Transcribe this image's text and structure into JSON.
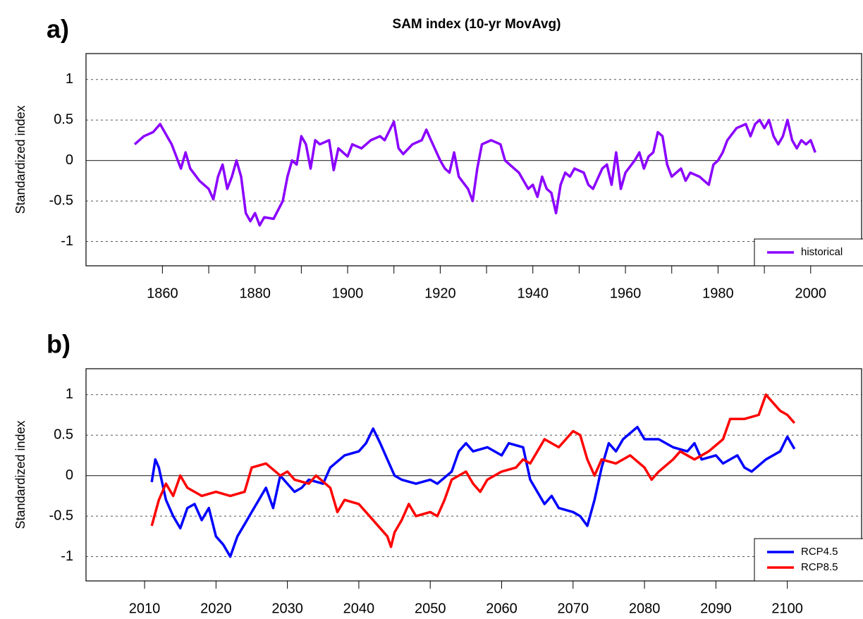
{
  "chart_data": [
    {
      "type": "line",
      "title": "SAM index (10-yr MovAvg)",
      "panel_label": "a)",
      "ylabel": "Standardized index",
      "xlim": [
        1843.5,
        2011
      ],
      "ylim": [
        -1.3,
        1.32
      ],
      "xticks": [
        1860,
        1880,
        1900,
        1920,
        1940,
        1960,
        1980,
        2000
      ],
      "x_minor_ticks": [
        1870,
        1890,
        1910,
        1930,
        1950,
        1970,
        1990
      ],
      "yticks": [
        -1,
        -0.5,
        0,
        0.5,
        1
      ],
      "grid": true,
      "zero_line": true,
      "legend": "bottom right",
      "series": [
        {
          "name": "historical",
          "color": "#8b00ff",
          "x": [
            1854,
            1856,
            1858,
            1859.5,
            1861,
            1862,
            1864,
            1865,
            1866,
            1868,
            1870,
            1871,
            1872,
            1873,
            1874,
            1875,
            1876,
            1877,
            1878,
            1879,
            1880,
            1881,
            1882,
            1884,
            1886,
            1887,
            1888,
            1889,
            1890,
            1891,
            1892,
            1893,
            1894,
            1896,
            1897,
            1898,
            1900,
            1901,
            1903,
            1905,
            1907,
            1908,
            1910,
            1911,
            1912,
            1914,
            1916,
            1917,
            1918,
            1920,
            1921,
            1922,
            1923,
            1924,
            1926,
            1927,
            1928,
            1929,
            1931,
            1933,
            1934,
            1935,
            1937,
            1939,
            1940,
            1941,
            1942,
            1943,
            1944,
            1945,
            1946,
            1947,
            1948,
            1949,
            1951,
            1952,
            1953,
            1955,
            1956,
            1957,
            1958,
            1959,
            1960,
            1962,
            1963,
            1964,
            1965,
            1966,
            1967,
            1968,
            1969,
            1970,
            1972,
            1973,
            1974,
            1976,
            1977,
            1978,
            1979,
            1980,
            1981,
            1982,
            1984,
            1986,
            1987,
            1988,
            1989,
            1990,
            1991,
            1992,
            1993,
            1994,
            1995,
            1996,
            1997,
            1998,
            1999,
            2000,
            2001
          ],
          "values": [
            0.2,
            0.3,
            0.35,
            0.45,
            0.3,
            0.2,
            -0.1,
            0.1,
            -0.1,
            -0.25,
            -0.35,
            -0.48,
            -0.2,
            -0.05,
            -0.35,
            -0.2,
            0.0,
            -0.2,
            -0.65,
            -0.75,
            -0.65,
            -0.8,
            -0.7,
            -0.72,
            -0.5,
            -0.2,
            0.0,
            -0.05,
            0.3,
            0.2,
            -0.1,
            0.25,
            0.2,
            0.25,
            -0.12,
            0.15,
            0.05,
            0.2,
            0.15,
            0.25,
            0.3,
            0.25,
            0.48,
            0.15,
            0.08,
            0.2,
            0.25,
            0.38,
            0.25,
            0.0,
            -0.1,
            -0.15,
            0.1,
            -0.2,
            -0.35,
            -0.5,
            -0.1,
            0.2,
            0.25,
            0.2,
            0.0,
            -0.05,
            -0.15,
            -0.35,
            -0.3,
            -0.45,
            -0.2,
            -0.35,
            -0.4,
            -0.65,
            -0.3,
            -0.15,
            -0.2,
            -0.1,
            -0.15,
            -0.3,
            -0.35,
            -0.1,
            -0.05,
            -0.3,
            0.1,
            -0.35,
            -0.15,
            0.0,
            0.1,
            -0.1,
            0.05,
            0.1,
            0.35,
            0.3,
            -0.05,
            -0.2,
            -0.1,
            -0.25,
            -0.15,
            -0.2,
            -0.25,
            -0.3,
            -0.05,
            0.0,
            0.1,
            0.25,
            0.4,
            0.45,
            0.3,
            0.45,
            0.5,
            0.4,
            0.5,
            0.3,
            0.2,
            0.3,
            0.5,
            0.25,
            0.15,
            0.25,
            0.2,
            0.25,
            0.1
          ]
        }
      ]
    },
    {
      "type": "line",
      "panel_label": "b)",
      "ylabel": "Standardized index",
      "xlim": [
        2001.8,
        2110.4
      ],
      "ylim": [
        -1.3,
        1.32
      ],
      "xticks": [
        2010,
        2020,
        2030,
        2040,
        2050,
        2060,
        2070,
        2080,
        2090,
        2100
      ],
      "yticks": [
        -1,
        -0.5,
        0,
        0.5,
        1
      ],
      "grid": true,
      "zero_line": true,
      "legend": "bottom right",
      "series": [
        {
          "name": "RCP4.5",
          "color": "#0000ff",
          "x": [
            2011,
            2011.5,
            2012,
            2013,
            2014,
            2015,
            2016,
            2017,
            2018,
            2019,
            2020,
            2021,
            2022,
            2023,
            2024,
            2025,
            2026,
            2027,
            2028,
            2029,
            2030,
            2031,
            2032,
            2033,
            2035,
            2036,
            2038,
            2040,
            2041,
            2042,
            2043,
            2044,
            2045,
            2046,
            2048,
            2050,
            2051,
            2053,
            2054,
            2055,
            2056,
            2058,
            2060,
            2061,
            2063,
            2064,
            2065,
            2066,
            2067,
            2068,
            2070,
            2071,
            2072,
            2073,
            2074,
            2075,
            2076,
            2077,
            2079,
            2080,
            2082,
            2084,
            2086,
            2087,
            2088,
            2090,
            2091,
            2093,
            2094,
            2095,
            2097,
            2099,
            2100,
            2101
          ],
          "values": [
            -0.08,
            0.2,
            0.1,
            -0.3,
            -0.5,
            -0.65,
            -0.4,
            -0.35,
            -0.55,
            -0.4,
            -0.75,
            -0.85,
            -1.0,
            -0.75,
            -0.6,
            -0.45,
            -0.3,
            -0.15,
            -0.4,
            0.0,
            -0.1,
            -0.2,
            -0.15,
            -0.05,
            -0.1,
            0.1,
            0.25,
            0.3,
            0.4,
            0.58,
            0.4,
            0.2,
            0.0,
            -0.05,
            -0.1,
            -0.05,
            -0.1,
            0.05,
            0.3,
            0.4,
            0.3,
            0.35,
            0.25,
            0.4,
            0.35,
            -0.05,
            -0.2,
            -0.35,
            -0.25,
            -0.4,
            -0.45,
            -0.5,
            -0.62,
            -0.3,
            0.1,
            0.4,
            0.3,
            0.45,
            0.6,
            0.45,
            0.45,
            0.35,
            0.3,
            0.4,
            0.2,
            0.25,
            0.15,
            0.25,
            0.1,
            0.05,
            0.2,
            0.3,
            0.48,
            0.33
          ]
        },
        {
          "name": "RCP8.5",
          "color": "#ff0000",
          "x": [
            2011,
            2012,
            2013,
            2014,
            2015,
            2016,
            2018,
            2020,
            2022,
            2024,
            2025,
            2027,
            2029,
            2030,
            2031,
            2033,
            2034,
            2036,
            2037,
            2038,
            2040,
            2042,
            2044,
            2044.5,
            2045,
            2046,
            2047,
            2048,
            2050,
            2051,
            2052,
            2053,
            2054,
            2055,
            2056,
            2057,
            2058,
            2060,
            2062,
            2063,
            2064,
            2066,
            2068,
            2070,
            2071,
            2072,
            2073,
            2074,
            2076,
            2078,
            2080,
            2081,
            2082,
            2084,
            2085,
            2087,
            2089,
            2091,
            2092,
            2094,
            2096,
            2097,
            2098,
            2099,
            2100,
            2101
          ],
          "values": [
            -0.62,
            -0.3,
            -0.1,
            -0.25,
            0.0,
            -0.15,
            -0.25,
            -0.2,
            -0.25,
            -0.2,
            0.1,
            0.15,
            0.0,
            0.05,
            -0.05,
            -0.1,
            0.0,
            -0.15,
            -0.45,
            -0.3,
            -0.35,
            -0.55,
            -0.75,
            -0.88,
            -0.7,
            -0.55,
            -0.35,
            -0.5,
            -0.45,
            -0.5,
            -0.3,
            -0.05,
            0.0,
            0.05,
            -0.1,
            -0.2,
            -0.05,
            0.05,
            0.1,
            0.2,
            0.15,
            0.45,
            0.35,
            0.55,
            0.5,
            0.2,
            0.0,
            0.2,
            0.15,
            0.25,
            0.1,
            -0.05,
            0.05,
            0.2,
            0.3,
            0.2,
            0.3,
            0.45,
            0.7,
            0.7,
            0.75,
            1.0,
            0.9,
            0.8,
            0.75,
            0.65
          ]
        }
      ]
    }
  ]
}
